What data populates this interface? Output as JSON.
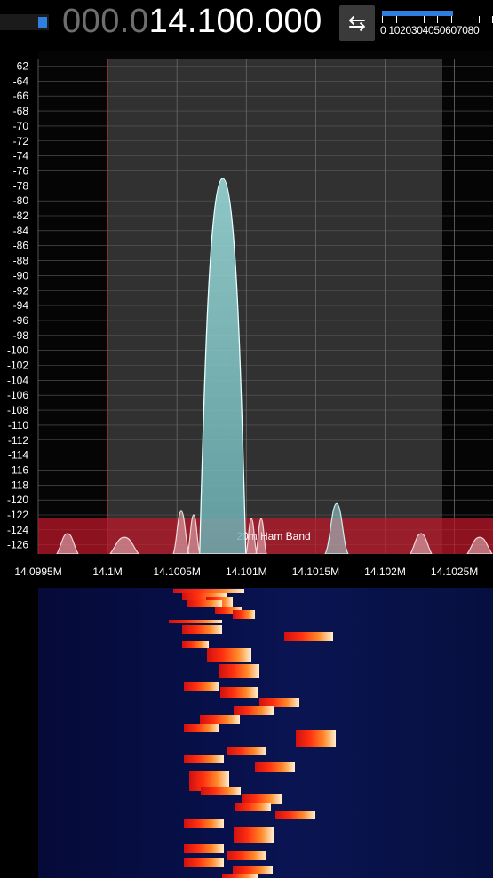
{
  "top_bar": {
    "frequency_dim": "000.0",
    "frequency_lit": "14.100.000",
    "swap_icon": "⇆",
    "squelch_scale": "0 1020304050607080",
    "signal_fill_fraction": 0.2,
    "squelch_fraction": 0.63
  },
  "spectrum": {
    "db_labels": [
      "-62",
      "-64",
      "-66",
      "-68",
      "-70",
      "-72",
      "-74",
      "-76",
      "-78",
      "-80",
      "-82",
      "-84",
      "-86",
      "-88",
      "-90",
      "-92",
      "-94",
      "-96",
      "-98",
      "-100",
      "-102",
      "-104",
      "-106",
      "-108",
      "-110",
      "-112",
      "-114",
      "-116",
      "-118",
      "-120",
      "-122",
      "-124",
      "-126"
    ],
    "freq_labels": [
      "14.0995M",
      "14.1M",
      "14.1005M",
      "14.101M",
      "14.1015M",
      "14.102M",
      "14.1025M"
    ],
    "band_label": "20m Ham Band",
    "peak_db": -77,
    "peak_freq_mhz": 14.10083,
    "colors": {
      "band_overlay": "#c0182a",
      "selection": "#3a3a3a",
      "signal_fill": "#8fcfd0",
      "grid": "#6a6a6a"
    }
  }
}
